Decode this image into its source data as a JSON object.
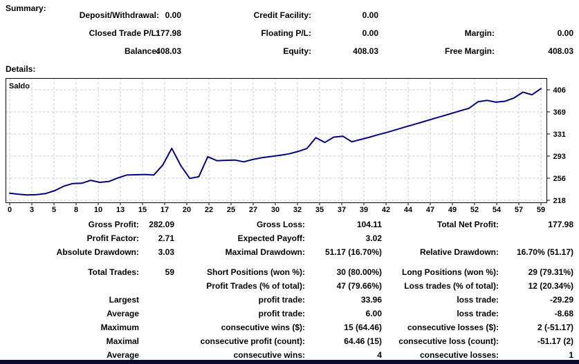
{
  "summary": {
    "title": "Summary:",
    "rows": [
      [
        "Deposit/Withdrawal:",
        "0.00",
        "Credit Facility:",
        "0.00",
        "",
        ""
      ],
      [
        "Closed Trade P/L:",
        "177.98",
        "Floating P/L:",
        "0.00",
        "Margin:",
        "0.00"
      ],
      [
        "Balance:",
        "408.03",
        "Equity:",
        "408.03",
        "Free Margin:",
        "408.03"
      ]
    ]
  },
  "details": {
    "title": "Details:"
  },
  "chart_data": {
    "type": "line",
    "title": "Saldo",
    "series": [
      {
        "name": "Saldo",
        "x_range": [
          0,
          59
        ],
        "values": [
          230.05,
          228.2,
          227.02,
          227.8,
          229.5,
          234.5,
          242.0,
          246.5,
          247.0,
          252.0,
          248.5,
          250.0,
          256.0,
          261.0,
          261.5,
          262.0,
          261.0,
          278.0,
          306.4,
          277.1,
          255.2,
          258.2,
          292.2,
          285.5,
          286.0,
          286.5,
          283.5,
          287.5,
          290.5,
          292.5,
          294.5,
          297.0,
          301.0,
          306.0,
          324.5,
          316.5,
          325.5,
          327.0,
          317.5,
          321.5,
          325.5,
          330.0,
          334.0,
          338.5,
          343.0,
          347.5,
          352.0,
          356.5,
          361.0,
          365.5,
          370.0,
          374.5,
          385.5,
          388.0,
          385.0,
          386.5,
          392.0,
          402.0,
          397.5,
          408.03
        ]
      }
    ],
    "x_tick_labels": [
      "0",
      "3",
      "5",
      "8",
      "10",
      "13",
      "15",
      "17",
      "20",
      "22",
      "25",
      "27",
      "30",
      "32",
      "35",
      "37",
      "39",
      "42",
      "44",
      "47",
      "49",
      "52",
      "54",
      "57",
      "59"
    ],
    "y_tick_labels": [
      "406",
      "369",
      "331",
      "293",
      "256",
      "218"
    ],
    "ylim": [
      218,
      406
    ],
    "grid": "dashed",
    "legend_position": "top-left-inside"
  },
  "stats_top": {
    "rows": [
      [
        "Gross Profit:",
        "282.09",
        "Gross Loss:",
        "104.11",
        "Total Net Profit:",
        "177.98"
      ],
      [
        "Profit Factor:",
        "2.71",
        "Expected Payoff:",
        "3.02",
        "",
        ""
      ],
      [
        "Absolute Drawdown:",
        "3.03",
        "Maximal Drawdown:",
        "51.17 (16.70%)",
        "Relative Drawdown:",
        "16.70% (51.17)"
      ]
    ]
  },
  "stats_bottom": {
    "rows": [
      [
        "Total Trades:",
        "59",
        "Short Positions (won %):",
        "30 (80.00%)",
        "Long Positions (won %):",
        "29 (79.31%)"
      ],
      [
        "",
        "",
        "Profit Trades (% of total):",
        "47 (79.66%)",
        "Loss trades (% of total):",
        "12 (20.34%)"
      ],
      [
        "Largest",
        "",
        "profit trade:",
        "33.96",
        "loss trade:",
        "-29.29"
      ],
      [
        "Average",
        "",
        "profit trade:",
        "6.00",
        "loss trade:",
        "-8.68"
      ],
      [
        "Maximum",
        "",
        "consecutive wins ($):",
        "15 (64.46)",
        "consecutive losses ($):",
        "2 (-51.17)"
      ],
      [
        "Maximal",
        "",
        "consecutive profit (count):",
        "64.46 (15)",
        "consecutive loss (count):",
        "-51.17 (2)"
      ],
      [
        "Average",
        "",
        "consecutive wins:",
        "4",
        "consecutive losses:",
        "1"
      ]
    ]
  },
  "colors": {
    "balance_line": "#000080",
    "grid_line": "#c8c8c8",
    "chart_border": "#000000",
    "bottom_bar": "#0a0a32"
  }
}
